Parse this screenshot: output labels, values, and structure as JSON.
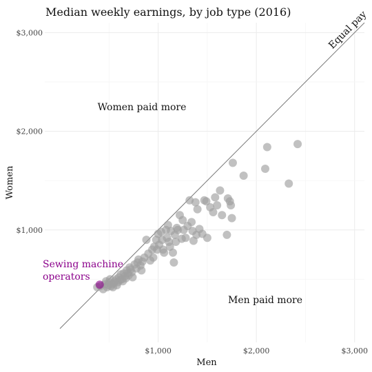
{
  "chart_data": {
    "type": "scatter",
    "title": "Median weekly earnings, by job type (2016)",
    "xlabel": "Men",
    "ylabel": "Women",
    "xlim": [
      0,
      3100
    ],
    "ylim": [
      0,
      3100
    ],
    "x_ticks": [
      1000,
      2000,
      3000
    ],
    "x_tick_labels": [
      "$1,000",
      "$2,000",
      "$3,000"
    ],
    "y_ticks": [
      1000,
      2000,
      3000
    ],
    "y_tick_labels": [
      "$1,000",
      "$2,000",
      "$3,000"
    ],
    "grid": true,
    "reference_line": {
      "label": "Equal pay",
      "slope": 1
    },
    "annotations": {
      "women_more": "Women paid more",
      "men_more": "Men paid more"
    },
    "highlight": {
      "label_line1": "Sewing machine",
      "label_line2": "operators",
      "x": 405,
      "y": 445,
      "color": "#8b008b"
    },
    "point_color": "#a0a0a0",
    "points": [
      [
        380,
        420
      ],
      [
        410,
        430
      ],
      [
        440,
        400
      ],
      [
        460,
        450
      ],
      [
        470,
        480
      ],
      [
        480,
        420
      ],
      [
        490,
        440
      ],
      [
        500,
        470
      ],
      [
        510,
        500
      ],
      [
        520,
        430
      ],
      [
        530,
        450
      ],
      [
        540,
        420
      ],
      [
        550,
        460
      ],
      [
        560,
        480
      ],
      [
        570,
        500
      ],
      [
        580,
        440
      ],
      [
        590,
        470
      ],
      [
        600,
        520
      ],
      [
        610,
        490
      ],
      [
        620,
        550
      ],
      [
        630,
        500
      ],
      [
        640,
        480
      ],
      [
        650,
        560
      ],
      [
        660,
        530
      ],
      [
        670,
        510
      ],
      [
        680,
        590
      ],
      [
        690,
        560
      ],
      [
        700,
        540
      ],
      [
        710,
        620
      ],
      [
        720,
        600
      ],
      [
        730,
        570
      ],
      [
        740,
        520
      ],
      [
        760,
        650
      ],
      [
        780,
        610
      ],
      [
        790,
        670
      ],
      [
        800,
        700
      ],
      [
        820,
        640
      ],
      [
        830,
        590
      ],
      [
        840,
        680
      ],
      [
        860,
        720
      ],
      [
        880,
        900
      ],
      [
        900,
        760
      ],
      [
        920,
        690
      ],
      [
        940,
        800
      ],
      [
        950,
        720
      ],
      [
        960,
        830
      ],
      [
        980,
        900
      ],
      [
        990,
        800
      ],
      [
        1000,
        960
      ],
      [
        1010,
        850
      ],
      [
        1030,
        980
      ],
      [
        1040,
        900
      ],
      [
        1050,
        800
      ],
      [
        1060,
        770
      ],
      [
        1080,
        1000
      ],
      [
        1090,
        920
      ],
      [
        1100,
        1050
      ],
      [
        1110,
        880
      ],
      [
        1120,
        830
      ],
      [
        1130,
        990
      ],
      [
        1150,
        770
      ],
      [
        1160,
        670
      ],
      [
        1170,
        950
      ],
      [
        1180,
        880
      ],
      [
        1190,
        1020
      ],
      [
        1200,
        1000
      ],
      [
        1220,
        1150
      ],
      [
        1240,
        910
      ],
      [
        1250,
        1100
      ],
      [
        1260,
        1000
      ],
      [
        1280,
        920
      ],
      [
        1300,
        1040
      ],
      [
        1320,
        1300
      ],
      [
        1340,
        1080
      ],
      [
        1350,
        990
      ],
      [
        1360,
        890
      ],
      [
        1380,
        1280
      ],
      [
        1390,
        950
      ],
      [
        1400,
        1210
      ],
      [
        1420,
        1010
      ],
      [
        1450,
        960
      ],
      [
        1470,
        1300
      ],
      [
        1490,
        1290
      ],
      [
        1500,
        920
      ],
      [
        1530,
        1230
      ],
      [
        1560,
        1180
      ],
      [
        1580,
        1330
      ],
      [
        1600,
        1250
      ],
      [
        1630,
        1400
      ],
      [
        1650,
        1150
      ],
      [
        1700,
        950
      ],
      [
        1710,
        1320
      ],
      [
        1730,
        1290
      ],
      [
        1740,
        1250
      ],
      [
        1750,
        1120
      ],
      [
        1760,
        1680
      ],
      [
        1870,
        1550
      ],
      [
        2090,
        1620
      ],
      [
        2110,
        1840
      ],
      [
        2330,
        1470
      ],
      [
        2420,
        1870
      ]
    ]
  }
}
